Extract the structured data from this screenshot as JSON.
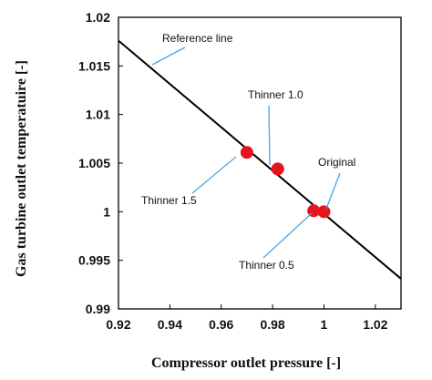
{
  "chart_data": {
    "type": "scatter",
    "xlabel": "Compressor  outlet pressure  [-]",
    "ylabel": "Gas turbine outlet temperatuire  [-]",
    "xlim": [
      0.92,
      1.03
    ],
    "ylim": [
      0.99,
      1.02
    ],
    "xticks": [
      0.92,
      0.94,
      0.96,
      0.98,
      1,
      1.02
    ],
    "xtick_labels": [
      "0.92",
      "0.94",
      "0.96",
      "0.98",
      "1",
      "1.02"
    ],
    "yticks": [
      0.99,
      0.995,
      1,
      1.005,
      1.01,
      1.015,
      1.02
    ],
    "ytick_labels": [
      "0.99",
      "0.995",
      "1",
      "1.005",
      "1.01",
      "1.015",
      "1.02"
    ],
    "grid": false,
    "marker_color": "#e8131b",
    "line_color": "#000000",
    "leader_color": "#4fa3e0",
    "reference_line": {
      "label": "Reference line",
      "x": [
        0.92,
        1.03
      ],
      "y": [
        1.0176,
        0.9931
      ]
    },
    "points": [
      {
        "label": "Thinner 1.5",
        "x": 0.97,
        "y": 1.0061
      },
      {
        "label": "Thinner 1.0",
        "x": 0.982,
        "y": 1.0044
      },
      {
        "label": "Thinner 0.5",
        "x": 0.996,
        "y": 1.0001
      },
      {
        "label": "Original",
        "x": 1.0,
        "y": 1.0
      }
    ]
  }
}
